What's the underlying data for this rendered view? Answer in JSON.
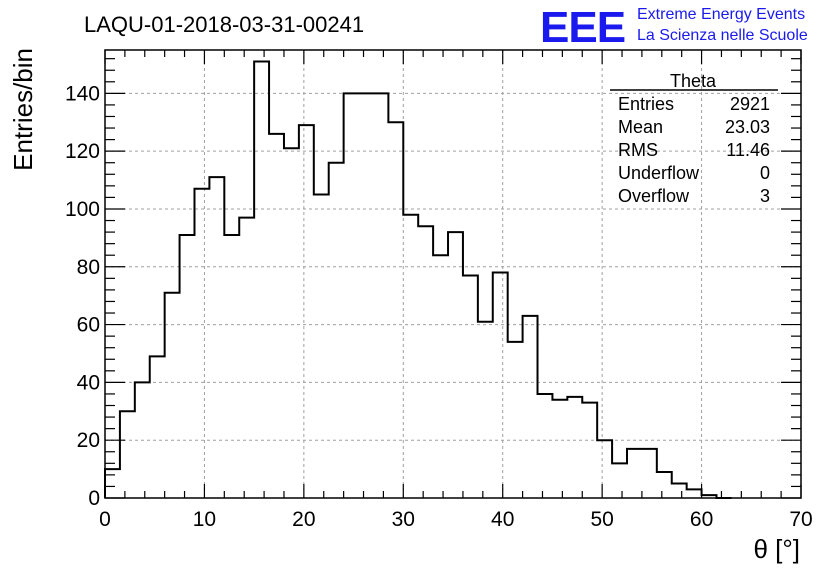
{
  "header": {
    "title": "LAQU-01-2018-03-31-00241",
    "logo_text": "EEE",
    "logo_line1": "Extreme Energy Events",
    "logo_line2": "La Scienza nelle Scuole",
    "logo_color": "#1a1aee"
  },
  "stats": {
    "name": "Theta",
    "rows": [
      {
        "label": "Entries",
        "value": "2921"
      },
      {
        "label": "Mean",
        "value": "23.03"
      },
      {
        "label": "RMS",
        "value": "11.46"
      },
      {
        "label": "Underflow",
        "value": "0"
      },
      {
        "label": "Overflow",
        "value": "3"
      }
    ]
  },
  "chart_data": {
    "type": "histogram",
    "xlabel": "θ [°]",
    "ylabel": "Entries/bin",
    "xlim": [
      0,
      70
    ],
    "ylim": [
      0,
      155
    ],
    "xticks": [
      0,
      10,
      20,
      30,
      40,
      50,
      60,
      70
    ],
    "yticks": [
      0,
      20,
      40,
      60,
      80,
      100,
      120,
      140
    ],
    "grid": true,
    "bin_width": 1.5,
    "bin_start": 0,
    "values": [
      10,
      30,
      40,
      49,
      71,
      91,
      107,
      111,
      91,
      97,
      151,
      126,
      121,
      129,
      105,
      116,
      140,
      140,
      140,
      130,
      98,
      94,
      84,
      92,
      77,
      61,
      78,
      54,
      63,
      36,
      34,
      35,
      33,
      20,
      12,
      17,
      17,
      9,
      5,
      3,
      1,
      0
    ]
  }
}
